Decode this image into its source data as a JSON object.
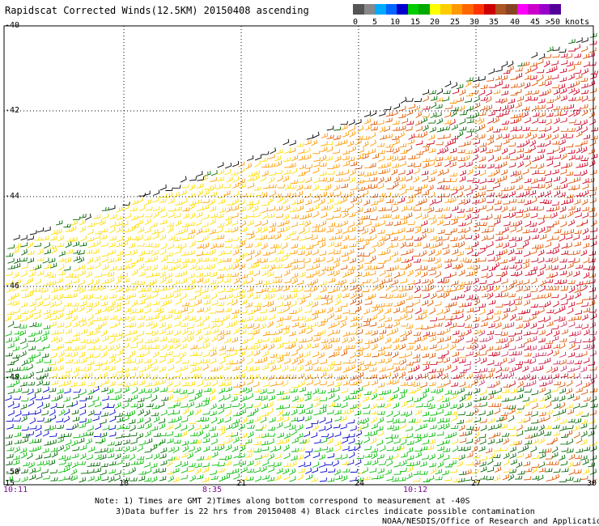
{
  "title": "Rapidscat Corrected Winds(12.5KM) 20150408 ascending",
  "colorbar": {
    "colors": [
      "#555555",
      "#888888",
      "#00aaff",
      "#0066ff",
      "#0000cc",
      "#00cc00",
      "#00aa00",
      "#ffff00",
      "#ffcc00",
      "#ff9900",
      "#ff6600",
      "#ff3300",
      "#cc0000",
      "#aa5522",
      "#884422",
      "#ff00ff",
      "#cc00cc",
      "#9900cc",
      "#550099"
    ],
    "labels": [
      "0",
      "5",
      "10",
      "15",
      "20",
      "25",
      "30",
      "35",
      "40",
      "45",
      ">50 knots"
    ]
  },
  "map": {
    "lat_labels": [
      "-40",
      "-42",
      "-44",
      "-46",
      "-48",
      "-50"
    ],
    "lon_labels": [
      "15",
      "18",
      "21",
      "24",
      "27",
      "30"
    ],
    "time_labels": [
      "10:11",
      "8:35",
      "10:12"
    ]
  },
  "footer": {
    "line1": "Note: 1) Times are GMT 2)Times along bottom correspond to measurement at -40S",
    "line2": "3)Data buffer is 22 hrs from 20150408 4) Black circles indicate possible contamination",
    "line3": "NOAA/NESDIS/Office of Research and Applications"
  },
  "wind_colors": {
    "black": "#000000",
    "blue": "#0000cc",
    "dark_green": "#006600",
    "green": "#00bb00",
    "yellow": "#ffdd00",
    "orange": "#ff9900",
    "dark_orange": "#dd5500",
    "red": "#cc0022",
    "magenta": "#cc3366"
  }
}
